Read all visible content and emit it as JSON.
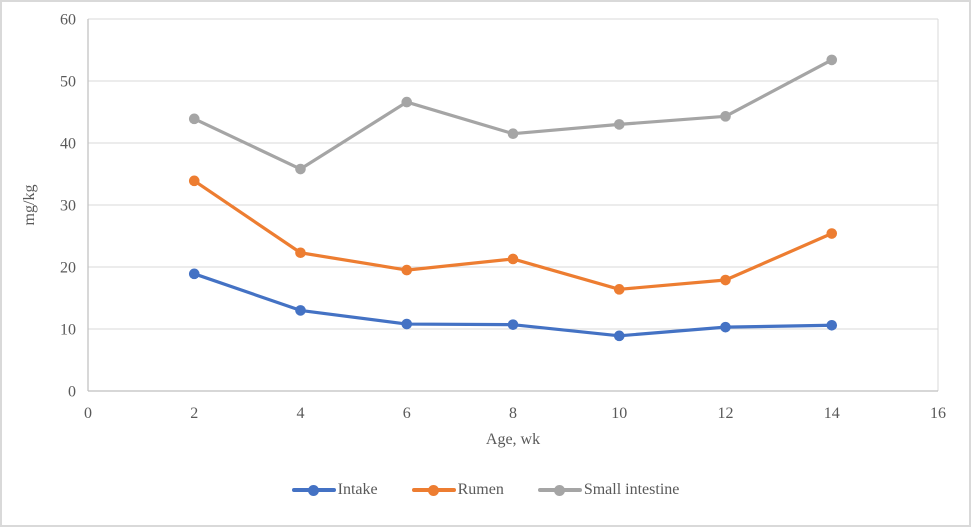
{
  "chart_data": {
    "type": "line",
    "title": "",
    "xlabel": "Age, wk",
    "ylabel": "mg/kg",
    "x": [
      2,
      4,
      6,
      8,
      10,
      12,
      14
    ],
    "series": [
      {
        "name": "Intake",
        "color": "#4472C4",
        "values": [
          18.9,
          13.0,
          10.8,
          10.7,
          8.9,
          10.3,
          10.6
        ]
      },
      {
        "name": "Rumen",
        "color": "#ED7D31",
        "values": [
          33.9,
          22.3,
          19.5,
          21.3,
          16.4,
          17.9,
          25.4
        ]
      },
      {
        "name": "Small intestine",
        "color": "#A5A5A5",
        "values": [
          43.9,
          35.8,
          46.6,
          41.5,
          43.0,
          44.3,
          53.4
        ]
      }
    ],
    "x_axis": {
      "min": 0,
      "max": 16,
      "tick_step": 2,
      "ticks": [
        0,
        2,
        4,
        6,
        8,
        10,
        12,
        14,
        16
      ]
    },
    "y_axis": {
      "min": 0,
      "max": 60,
      "tick_step": 10,
      "ticks": [
        0,
        10,
        20,
        30,
        40,
        50,
        60
      ]
    },
    "grid": "horizontal-only",
    "legend_position": "bottom",
    "marker": "circle",
    "colors": {
      "gridline": "#D9D9D9",
      "axis_line": "#BFBFBF",
      "plot_right_border": "#D9D9D9",
      "text": "#595959",
      "frame_border": "#D9D9D9",
      "background": "#FFFFFF"
    }
  }
}
